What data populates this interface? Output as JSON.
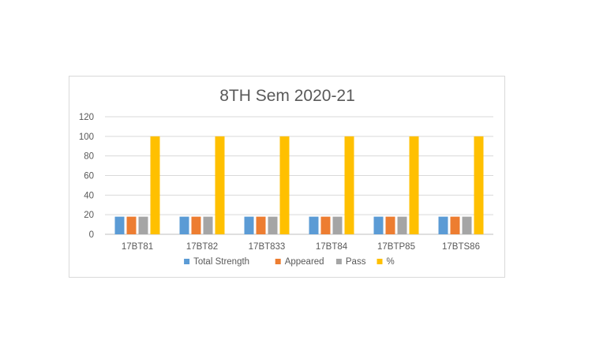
{
  "chart_data": {
    "type": "bar",
    "title": "8TH  Sem  2020-21",
    "xlabel": "",
    "ylabel": "",
    "ylim": [
      0,
      120
    ],
    "yticks": [
      0,
      20,
      40,
      60,
      80,
      100,
      120
    ],
    "grid": true,
    "legend_position": "bottom",
    "categories": [
      "17BT81",
      "17BT82",
      "17BT833",
      "17BT84",
      "17BTP85",
      "17BTS86"
    ],
    "series": [
      {
        "name": "Total Strength",
        "color": "#5b9bd5",
        "values": [
          18,
          18,
          18,
          18,
          18,
          18
        ]
      },
      {
        "name": "Appeared",
        "color": "#ed7d31",
        "values": [
          18,
          18,
          18,
          18,
          18,
          18
        ]
      },
      {
        "name": "Pass",
        "color": "#a5a5a5",
        "values": [
          18,
          18,
          18,
          18,
          18,
          18
        ]
      },
      {
        "name": "%",
        "color": "#ffc000",
        "values": [
          100,
          100,
          100,
          100,
          100,
          100
        ]
      }
    ]
  }
}
